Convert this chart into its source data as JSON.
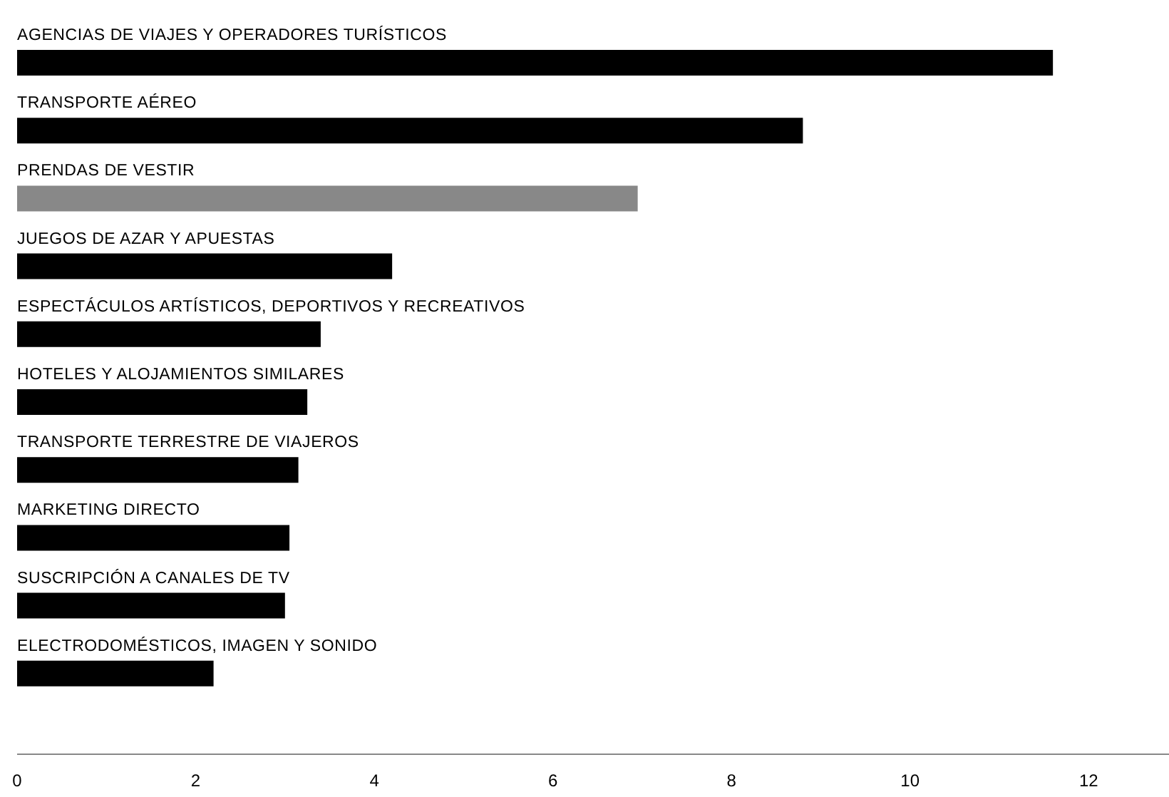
{
  "chart_data": {
    "type": "bar",
    "orientation": "horizontal",
    "categories": [
      "AGENCIAS DE VIAJES Y OPERADORES TURÍSTICOS",
      "TRANSPORTE AÉREO",
      "PRENDAS DE VESTIR",
      "JUEGOS DE AZAR Y APUESTAS",
      "ESPECTÁCULOS ARTÍSTICOS, DEPORTIVOS Y RECREATIVOS",
      "HOTELES Y ALOJAMIENTOS SIMILARES",
      "TRANSPORTE TERRESTRE DE VIAJEROS",
      "MARKETING DIRECTO",
      "SUSCRIPCIÓN A CANALES DE TV",
      "ELECTRODOMÉSTICOS, IMAGEN Y SONIDO"
    ],
    "values": [
      11.6,
      8.8,
      6.95,
      4.2,
      3.4,
      3.25,
      3.15,
      3.05,
      3.0,
      2.2
    ],
    "colors": [
      "#000000",
      "#000000",
      "#888888",
      "#000000",
      "#000000",
      "#000000",
      "#000000",
      "#000000",
      "#000000",
      "#000000"
    ],
    "xlim": [
      0,
      12.9
    ],
    "xticks": [
      0,
      2,
      4,
      6,
      8,
      10,
      12
    ],
    "grid": false
  }
}
